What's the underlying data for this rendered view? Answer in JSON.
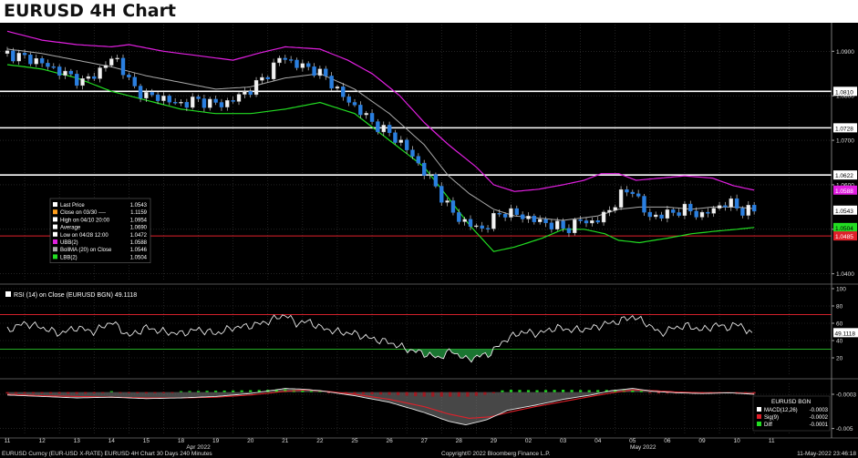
{
  "page_title": "EURUSD 4H Chart",
  "chart_data": {
    "type": "candlestick",
    "instrument": "EURUSD",
    "timeframe": "4H",
    "x_day_ticks": [
      "11",
      "12",
      "13",
      "14",
      "15",
      "18",
      "19",
      "20",
      "21",
      "22",
      "25",
      "26",
      "27",
      "28",
      "29",
      "02",
      "03",
      "04",
      "05",
      "06",
      "09",
      "10",
      "11"
    ],
    "month_labels": [
      {
        "text": "Apr 2022",
        "day_index": 5.5
      },
      {
        "text": "May 2022",
        "day_index": 18.3
      }
    ],
    "price_axis": {
      "ylim": [
        1.0385,
        1.096
      ],
      "ticks": [
        1.04,
        1.05,
        1.06,
        1.07,
        1.08,
        1.09
      ],
      "tick_labels": [
        "1.0400",
        "1.0500",
        "1.0600",
        "1.0700",
        "1.0800",
        "1.0900"
      ]
    },
    "horizontal_levels": [
      {
        "value": 1.081,
        "label": "1.0810",
        "color": "#ffffff"
      },
      {
        "value": 1.0728,
        "label": "1.0728",
        "color": "#ffffff"
      },
      {
        "value": 1.0622,
        "label": "1.0622",
        "color": "#ffffff"
      },
      {
        "value": 1.0485,
        "label": "1.0485",
        "color": "#e0202a"
      }
    ],
    "value_tags": [
      {
        "value": 1.0588,
        "label": "1.0588",
        "bg": "#e11fe0",
        "fg": "#ffffff"
      },
      {
        "value": 1.0543,
        "label": "1.0543",
        "bg": "#ffffff",
        "fg": "#000000"
      },
      {
        "value": 1.0504,
        "label": "1.0504",
        "bg": "#22dd22",
        "fg": "#000000"
      },
      {
        "value": 1.0485,
        "label": "1.0485",
        "bg": "#e0202a",
        "fg": "#ffffff"
      }
    ],
    "close_anchors": [
      [
        0,
        1.0895
      ],
      [
        0.8,
        1.088
      ],
      [
        1.5,
        1.0855
      ],
      [
        2.2,
        1.083
      ],
      [
        2.7,
        1.086
      ],
      [
        3.1,
        1.089
      ],
      [
        3.6,
        1.082
      ],
      [
        4.0,
        1.08
      ],
      [
        4.5,
        1.0795
      ],
      [
        4.9,
        1.078
      ],
      [
        5.4,
        1.079
      ],
      [
        5.8,
        1.0785
      ],
      [
        6.2,
        1.078
      ],
      [
        6.7,
        1.08
      ],
      [
        7.1,
        1.082
      ],
      [
        7.5,
        1.085
      ],
      [
        7.9,
        1.089
      ],
      [
        8.3,
        1.087
      ],
      [
        8.8,
        1.086
      ],
      [
        9.2,
        1.084
      ],
      [
        9.7,
        1.0795
      ],
      [
        10.1,
        1.077
      ],
      [
        10.5,
        1.074
      ],
      [
        11.0,
        1.0715
      ],
      [
        11.4,
        1.069
      ],
      [
        11.8,
        1.065
      ],
      [
        12.3,
        1.06
      ],
      [
        12.6,
        1.056
      ],
      [
        12.9,
        1.053
      ],
      [
        13.3,
        1.051
      ],
      [
        13.7,
        1.05
      ],
      [
        14.0,
        1.0525
      ],
      [
        14.3,
        1.054
      ],
      [
        14.8,
        1.053
      ],
      [
        15.2,
        1.052
      ],
      [
        15.7,
        1.051
      ],
      [
        16.1,
        1.05
      ],
      [
        16.5,
        1.052
      ],
      [
        16.9,
        1.0515
      ],
      [
        17.3,
        1.054
      ],
      [
        17.7,
        1.058
      ],
      [
        18.0,
        1.059
      ],
      [
        18.4,
        1.053
      ],
      [
        18.8,
        1.053
      ],
      [
        19.2,
        1.054
      ],
      [
        19.6,
        1.0545
      ],
      [
        20.0,
        1.053
      ],
      [
        20.4,
        1.055
      ],
      [
        20.8,
        1.056
      ],
      [
        21.2,
        1.054
      ],
      [
        21.5,
        1.0543
      ]
    ],
    "bollinger": {
      "period": 20,
      "upper_anchors": [
        [
          0,
          1.0945
        ],
        [
          1,
          1.0925
        ],
        [
          2,
          1.0915
        ],
        [
          3,
          1.091
        ],
        [
          3.5,
          1.0915
        ],
        [
          4.5,
          1.09
        ],
        [
          5.5,
          1.089
        ],
        [
          6.5,
          1.088
        ],
        [
          7.2,
          1.0895
        ],
        [
          8,
          1.091
        ],
        [
          9,
          1.0905
        ],
        [
          9.8,
          1.088
        ],
        [
          10.5,
          1.085
        ],
        [
          11.3,
          1.08
        ],
        [
          12,
          1.074
        ],
        [
          12.7,
          1.069
        ],
        [
          13.5,
          1.064
        ],
        [
          14,
          1.06
        ],
        [
          14.6,
          1.0585
        ],
        [
          15.3,
          1.059
        ],
        [
          16,
          1.06
        ],
        [
          16.6,
          1.061
        ],
        [
          17.1,
          1.0625
        ],
        [
          17.6,
          1.0625
        ],
        [
          18.1,
          1.061
        ],
        [
          18.8,
          1.0615
        ],
        [
          19.5,
          1.062
        ],
        [
          20.3,
          1.0615
        ],
        [
          20.9,
          1.0598
        ],
        [
          21.5,
          1.0588
        ]
      ],
      "mid_anchors": [
        [
          0,
          1.0905
        ],
        [
          1,
          1.0895
        ],
        [
          2,
          1.088
        ],
        [
          3,
          1.0865
        ],
        [
          4,
          1.0845
        ],
        [
          5,
          1.083
        ],
        [
          6,
          1.0815
        ],
        [
          7,
          1.082
        ],
        [
          8,
          1.084
        ],
        [
          9,
          1.085
        ],
        [
          10,
          1.0815
        ],
        [
          11,
          1.076
        ],
        [
          12,
          1.069
        ],
        [
          12.7,
          1.062
        ],
        [
          13.3,
          1.058
        ],
        [
          14,
          1.0545
        ],
        [
          14.6,
          1.053
        ],
        [
          15.3,
          1.0525
        ],
        [
          16,
          1.052
        ],
        [
          17,
          1.053
        ],
        [
          17.6,
          1.0545
        ],
        [
          18.2,
          1.055
        ],
        [
          19,
          1.055
        ],
        [
          19.7,
          1.0545
        ],
        [
          20.3,
          1.055
        ],
        [
          21,
          1.055
        ],
        [
          21.5,
          1.0546
        ]
      ],
      "lower_anchors": [
        [
          0,
          1.087
        ],
        [
          1,
          1.086
        ],
        [
          2,
          1.084
        ],
        [
          3,
          1.081
        ],
        [
          4,
          1.079
        ],
        [
          5,
          1.077
        ],
        [
          6,
          1.076
        ],
        [
          7,
          1.076
        ],
        [
          8,
          1.077
        ],
        [
          9,
          1.0785
        ],
        [
          10,
          1.076
        ],
        [
          11,
          1.07
        ],
        [
          12,
          1.064
        ],
        [
          12.7,
          1.057
        ],
        [
          13.3,
          1.051
        ],
        [
          14,
          1.045
        ],
        [
          14.6,
          1.046
        ],
        [
          15.4,
          1.048
        ],
        [
          16,
          1.05
        ],
        [
          16.6,
          1.05
        ],
        [
          17.2,
          1.049
        ],
        [
          17.6,
          1.0475
        ],
        [
          18.2,
          1.047
        ],
        [
          19,
          1.048
        ],
        [
          19.7,
          1.049
        ],
        [
          20.3,
          1.0495
        ],
        [
          21,
          1.05
        ],
        [
          21.5,
          1.0504
        ]
      ]
    },
    "legend": {
      "items": [
        {
          "swatch": "#ffffff",
          "label": "Last Price",
          "value": "1.0543"
        },
        {
          "swatch": "#ff9d1a",
          "label": "Close on 03/30 ----",
          "value": "1.1159"
        },
        {
          "swatch": "#ffffff",
          "label": "High on 04/10 20:00",
          "value": "1.0954"
        },
        {
          "swatch": "#ffffff",
          "label": "Average",
          "value": "1.0690"
        },
        {
          "swatch": "#ffffff",
          "label": "Low on 04/28 12:00",
          "value": "1.0472"
        },
        {
          "swatch": "#e11fe0",
          "label": "UBB(2)",
          "value": "1.0588"
        },
        {
          "swatch": "#aaaaaa",
          "label": "BollMA (20)  on Close",
          "value": "1.0546"
        },
        {
          "swatch": "#22dd22",
          "label": "LBB(2)",
          "value": "1.0504"
        }
      ]
    },
    "rsi": {
      "title": "RSI (14)  on Close (EURUSD BGN) 49.1118",
      "last_value": 49.1118,
      "last_label": "49.1118",
      "ylim": [
        0,
        100
      ],
      "ticks": [
        20,
        40,
        60,
        80,
        100
      ],
      "tick_labels": [
        "20",
        "40",
        "60",
        "80",
        "100"
      ],
      "overbought": 70,
      "oversold": 30,
      "anchors": [
        [
          0,
          52
        ],
        [
          0.5,
          60
        ],
        [
          1,
          55
        ],
        [
          1.5,
          48
        ],
        [
          2,
          55
        ],
        [
          2.5,
          50
        ],
        [
          3,
          62
        ],
        [
          3.5,
          45
        ],
        [
          4,
          55
        ],
        [
          4.5,
          50
        ],
        [
          5,
          48
        ],
        [
          5.5,
          53
        ],
        [
          6,
          48
        ],
        [
          6.5,
          55
        ],
        [
          7,
          57
        ],
        [
          7.5,
          62
        ],
        [
          8,
          70
        ],
        [
          8.3,
          60
        ],
        [
          8.7,
          62
        ],
        [
          9,
          55
        ],
        [
          9.5,
          50
        ],
        [
          10,
          48
        ],
        [
          10.5,
          42
        ],
        [
          11,
          38
        ],
        [
          11.5,
          30
        ],
        [
          12,
          25
        ],
        [
          12.4,
          20
        ],
        [
          12.8,
          28
        ],
        [
          13.2,
          18
        ],
        [
          13.6,
          22
        ],
        [
          13.9,
          25
        ],
        [
          14.3,
          40
        ],
        [
          14.8,
          50
        ],
        [
          15.3,
          48
        ],
        [
          15.8,
          55
        ],
        [
          16.3,
          52
        ],
        [
          16.8,
          54
        ],
        [
          17.3,
          60
        ],
        [
          17.6,
          62
        ],
        [
          18,
          68
        ],
        [
          18.4,
          60
        ],
        [
          18.8,
          48
        ],
        [
          19.2,
          55
        ],
        [
          19.6,
          57
        ],
        [
          20,
          52
        ],
        [
          20.4,
          58
        ],
        [
          20.8,
          55
        ],
        [
          21.1,
          60
        ],
        [
          21.3,
          50
        ],
        [
          21.5,
          49.1118
        ]
      ]
    },
    "macd": {
      "title": "EURUSD BGN",
      "ylim": [
        -0.0058,
        0.0012
      ],
      "ticks": [
        -0.0003,
        -0.005
      ],
      "tick_labels": [
        "-0.0003",
        "-0.005"
      ],
      "series": [
        {
          "name": "MACD(12,26)",
          "value": "-0.0003",
          "color": "#ffffff"
        },
        {
          "name": "Sig(9)",
          "value": "-0.0002",
          "color": "#e0202a"
        },
        {
          "name": "Diff",
          "value": "-0.0001",
          "color": "#22dd22"
        }
      ],
      "macd_anchors": [
        [
          0,
          -0.0004
        ],
        [
          1,
          -0.0006
        ],
        [
          2,
          -0.0008
        ],
        [
          3,
          -0.0007
        ],
        [
          4,
          -0.0009
        ],
        [
          5,
          -0.0008
        ],
        [
          6,
          -0.0006
        ],
        [
          7,
          -0.0002
        ],
        [
          8,
          0.0005
        ],
        [
          8.5,
          0.0004
        ],
        [
          9,
          0.0002
        ],
        [
          10,
          -0.0005
        ],
        [
          11,
          -0.0014
        ],
        [
          12,
          -0.0028
        ],
        [
          12.7,
          -0.004
        ],
        [
          13.2,
          -0.0045
        ],
        [
          13.8,
          -0.0038
        ],
        [
          14.4,
          -0.0025
        ],
        [
          15.2,
          -0.0018
        ],
        [
          16,
          -0.001
        ],
        [
          16.8,
          -0.0004
        ],
        [
          17.4,
          0.0002
        ],
        [
          18,
          0.0005
        ],
        [
          18.6,
          0.0001
        ],
        [
          19.3,
          -0.0001
        ],
        [
          20,
          -0.0002
        ],
        [
          20.8,
          -0.0001
        ],
        [
          21.5,
          -0.0003
        ]
      ],
      "signal_anchors": [
        [
          0,
          -0.0003
        ],
        [
          1,
          -0.0005
        ],
        [
          2,
          -0.0006
        ],
        [
          3,
          -0.0007
        ],
        [
          4,
          -0.0008
        ],
        [
          5,
          -0.0008
        ],
        [
          6,
          -0.0007
        ],
        [
          7,
          -0.0004
        ],
        [
          8,
          0.0001
        ],
        [
          8.6,
          0.0003
        ],
        [
          9.2,
          0.0001
        ],
        [
          10,
          -0.0003
        ],
        [
          11,
          -0.001
        ],
        [
          12,
          -0.002
        ],
        [
          12.7,
          -0.003
        ],
        [
          13.3,
          -0.0036
        ],
        [
          13.9,
          -0.0034
        ],
        [
          14.5,
          -0.0027
        ],
        [
          15.2,
          -0.002
        ],
        [
          16,
          -0.0013
        ],
        [
          16.8,
          -0.0006
        ],
        [
          17.4,
          -0.0001
        ],
        [
          18,
          0.0003
        ],
        [
          18.6,
          0.0002
        ],
        [
          19.3,
          0.0
        ],
        [
          20,
          -0.0001
        ],
        [
          20.8,
          -0.0001
        ],
        [
          21.5,
          -0.0002
        ]
      ]
    }
  },
  "footer": {
    "left": "EURUSD Curncy (EUR-USD X-RATE) EURUSD 4H Chart 30 Days 240 Minutes",
    "center": "Copyright© 2022 Bloomberg Finance L.P.",
    "right": "11-May-2022 23:46:18"
  }
}
